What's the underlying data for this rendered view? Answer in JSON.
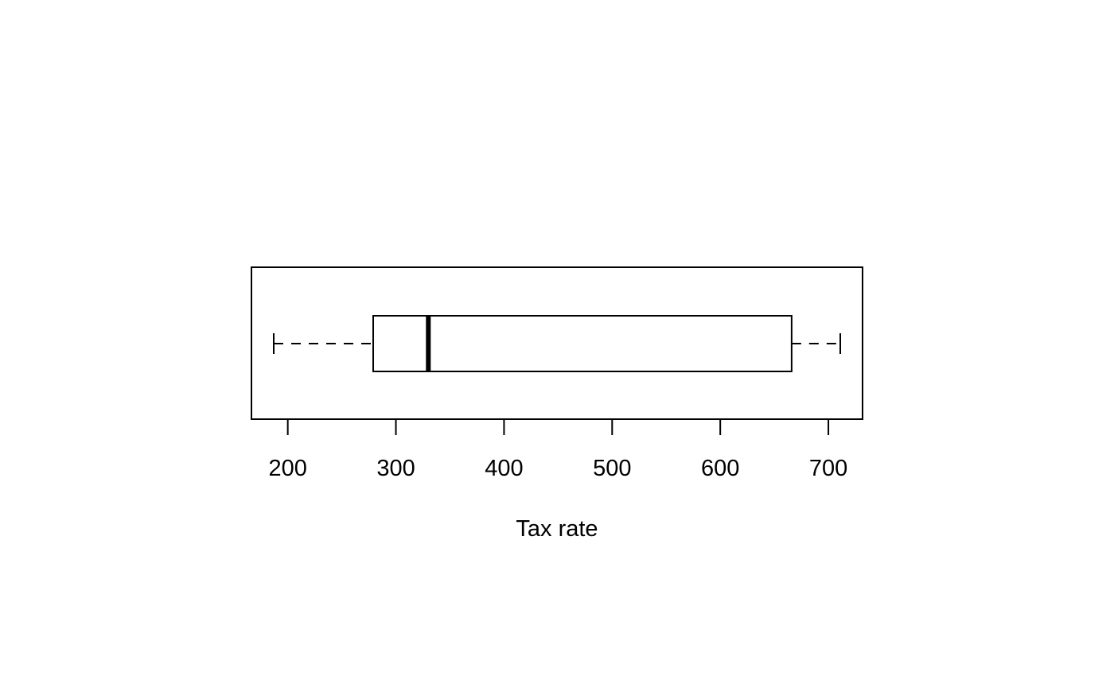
{
  "chart_data": {
    "type": "boxplot",
    "orientation": "horizontal",
    "xlabel": "Tax rate",
    "x_ticks": [
      200,
      300,
      400,
      500,
      600,
      700
    ],
    "x_tick_labels": [
      "200",
      "300",
      "400",
      "500",
      "600",
      "700"
    ],
    "xlim": [
      166.4,
      731.6
    ],
    "box": {
      "whisker_low": 187,
      "q1": 279,
      "median": 330,
      "q3": 666,
      "whisker_high": 711
    },
    "grid": false,
    "legend": "none",
    "colors": {
      "stroke": "#000000",
      "box_fill": "#ffffff",
      "background": "#ffffff"
    }
  }
}
